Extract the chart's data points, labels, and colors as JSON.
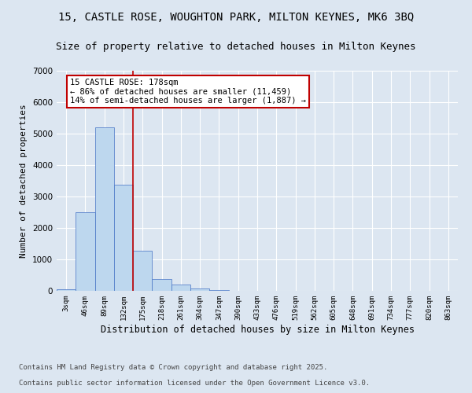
{
  "title_line1": "15, CASTLE ROSE, WOUGHTON PARK, MILTON KEYNES, MK6 3BQ",
  "title_line2": "Size of property relative to detached houses in Milton Keynes",
  "xlabel": "Distribution of detached houses by size in Milton Keynes",
  "ylabel": "Number of detached properties",
  "categories": [
    "3sqm",
    "46sqm",
    "89sqm",
    "132sqm",
    "175sqm",
    "218sqm",
    "261sqm",
    "304sqm",
    "347sqm",
    "390sqm",
    "433sqm",
    "476sqm",
    "519sqm",
    "562sqm",
    "605sqm",
    "648sqm",
    "691sqm",
    "734sqm",
    "777sqm",
    "820sqm",
    "863sqm"
  ],
  "values": [
    60,
    2500,
    5200,
    3380,
    1280,
    380,
    200,
    75,
    20,
    5,
    3,
    2,
    1,
    0,
    0,
    0,
    0,
    0,
    0,
    0,
    0
  ],
  "bar_color": "#bdd7ee",
  "bar_edge_color": "#4472c4",
  "vline_color": "#c00000",
  "annotation_text": "15 CASTLE ROSE: 178sqm\n← 86% of detached houses are smaller (11,459)\n14% of semi-detached houses are larger (1,887) →",
  "annotation_box_color": "#c00000",
  "ylim": [
    0,
    7000
  ],
  "yticks": [
    0,
    1000,
    2000,
    3000,
    4000,
    5000,
    6000,
    7000
  ],
  "background_color": "#dce6f1",
  "plot_bg_color": "#dce6f1",
  "footer_line1": "Contains HM Land Registry data © Crown copyright and database right 2025.",
  "footer_line2": "Contains public sector information licensed under the Open Government Licence v3.0.",
  "title_fontsize": 10,
  "subtitle_fontsize": 9,
  "annotation_fontsize": 7.5,
  "footer_fontsize": 6.5,
  "ylabel_fontsize": 8,
  "xlabel_fontsize": 8.5
}
